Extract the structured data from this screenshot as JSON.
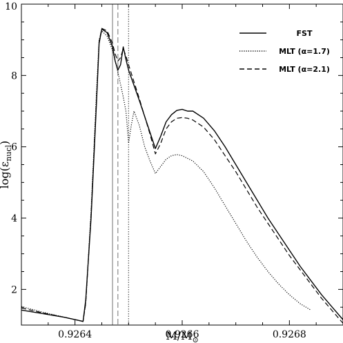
{
  "chart_data": {
    "type": "line",
    "xlabel": "M/M",
    "xlabel_sub": "⊙",
    "ylabel": "log(ε",
    "ylabel_sub": "nucl",
    "ylabel_close": ")",
    "xlim": [
      0.9263,
      0.9269
    ],
    "ylim": [
      1.0,
      10.0
    ],
    "x_ticks": [
      {
        "value": 0.9264,
        "label": "0.9264"
      },
      {
        "value": 0.9266,
        "label": "0.9266"
      },
      {
        "value": 0.9268,
        "label": "0.9268"
      }
    ],
    "y_ticks": [
      {
        "value": 2,
        "label": "2"
      },
      {
        "value": 4,
        "label": "4"
      },
      {
        "value": 6,
        "label": "6"
      },
      {
        "value": 8,
        "label": "8"
      },
      {
        "value": 10,
        "label": "10"
      }
    ],
    "x_minor_step": 5e-05,
    "y_minor_step": 0.5,
    "legend_position": "top-right",
    "series": [
      {
        "name": "FST",
        "style": "solid",
        "color": "#000000",
        "points": [
          [
            0.9263,
            1.42
          ],
          [
            0.92634,
            1.32
          ],
          [
            0.92638,
            1.22
          ],
          [
            0.92641,
            1.12
          ],
          [
            0.926415,
            1.1
          ],
          [
            0.92642,
            1.7
          ],
          [
            0.92643,
            4.0
          ],
          [
            0.92644,
            7.2
          ],
          [
            0.926445,
            8.9
          ],
          [
            0.92645,
            9.3
          ],
          [
            0.92646,
            9.2
          ],
          [
            0.92647,
            8.8
          ],
          [
            0.926475,
            8.4
          ],
          [
            0.92648,
            8.15
          ],
          [
            0.926485,
            8.3
          ],
          [
            0.92649,
            8.8
          ],
          [
            0.926495,
            8.45
          ],
          [
            0.9265,
            8.15
          ],
          [
            0.92652,
            7.3
          ],
          [
            0.92654,
            6.4
          ],
          [
            0.92655,
            5.95
          ],
          [
            0.92656,
            6.3
          ],
          [
            0.92657,
            6.7
          ],
          [
            0.92658,
            6.9
          ],
          [
            0.92659,
            7.02
          ],
          [
            0.9266,
            7.05
          ],
          [
            0.92661,
            7.0
          ],
          [
            0.92662,
            7.0
          ],
          [
            0.92664,
            6.8
          ],
          [
            0.92666,
            6.45
          ],
          [
            0.92668,
            6.0
          ],
          [
            0.9267,
            5.5
          ],
          [
            0.92672,
            5.0
          ],
          [
            0.92674,
            4.5
          ],
          [
            0.92676,
            4.0
          ],
          [
            0.92678,
            3.55
          ],
          [
            0.9268,
            3.1
          ],
          [
            0.92682,
            2.65
          ],
          [
            0.92684,
            2.25
          ],
          [
            0.92686,
            1.85
          ],
          [
            0.92688,
            1.5
          ],
          [
            0.9269,
            1.15
          ]
        ]
      },
      {
        "name": "MLT (α=1.7)",
        "style": "dotted",
        "color": "#000000",
        "points": [
          [
            0.9263,
            1.52
          ],
          [
            0.92634,
            1.36
          ],
          [
            0.92638,
            1.22
          ],
          [
            0.92641,
            1.12
          ],
          [
            0.926415,
            1.1
          ],
          [
            0.92642,
            1.6
          ],
          [
            0.92643,
            4.2
          ],
          [
            0.92644,
            7.5
          ],
          [
            0.926445,
            9.0
          ],
          [
            0.92645,
            9.25
          ],
          [
            0.92646,
            9.1
          ],
          [
            0.92647,
            8.7
          ],
          [
            0.92648,
            8.1
          ],
          [
            0.92649,
            7.4
          ],
          [
            0.926495,
            7.0
          ],
          [
            0.9265,
            6.1
          ],
          [
            0.926505,
            6.6
          ],
          [
            0.92651,
            7.0
          ],
          [
            0.92652,
            6.6
          ],
          [
            0.92653,
            6.0
          ],
          [
            0.92654,
            5.6
          ],
          [
            0.92655,
            5.25
          ],
          [
            0.92656,
            5.45
          ],
          [
            0.92657,
            5.65
          ],
          [
            0.92658,
            5.75
          ],
          [
            0.92659,
            5.78
          ],
          [
            0.9266,
            5.75
          ],
          [
            0.92662,
            5.6
          ],
          [
            0.92664,
            5.3
          ],
          [
            0.92666,
            4.85
          ],
          [
            0.92668,
            4.35
          ],
          [
            0.9267,
            3.85
          ],
          [
            0.92672,
            3.35
          ],
          [
            0.92674,
            2.9
          ],
          [
            0.92676,
            2.5
          ],
          [
            0.92678,
            2.15
          ],
          [
            0.9268,
            1.85
          ],
          [
            0.92682,
            1.6
          ],
          [
            0.92684,
            1.42
          ]
        ]
      },
      {
        "name": "MLT (α=2.1)",
        "style": "dashed",
        "color": "#000000",
        "points": [
          [
            0.9263,
            1.48
          ],
          [
            0.92634,
            1.34
          ],
          [
            0.92638,
            1.22
          ],
          [
            0.92641,
            1.12
          ],
          [
            0.926415,
            1.1
          ],
          [
            0.92642,
            1.6
          ],
          [
            0.92643,
            4.1
          ],
          [
            0.92644,
            7.3
          ],
          [
            0.926445,
            8.95
          ],
          [
            0.92645,
            9.32
          ],
          [
            0.92646,
            9.25
          ],
          [
            0.92647,
            8.9
          ],
          [
            0.926475,
            8.6
          ],
          [
            0.92648,
            8.4
          ],
          [
            0.926485,
            8.5
          ],
          [
            0.92649,
            8.75
          ],
          [
            0.926495,
            8.55
          ],
          [
            0.9265,
            8.3
          ],
          [
            0.92652,
            7.35
          ],
          [
            0.92654,
            6.35
          ],
          [
            0.92655,
            5.8
          ],
          [
            0.92656,
            6.1
          ],
          [
            0.92657,
            6.5
          ],
          [
            0.92658,
            6.7
          ],
          [
            0.92659,
            6.8
          ],
          [
            0.9266,
            6.82
          ],
          [
            0.92661,
            6.8
          ],
          [
            0.92662,
            6.75
          ],
          [
            0.92664,
            6.55
          ],
          [
            0.92666,
            6.2
          ],
          [
            0.92668,
            5.75
          ],
          [
            0.9267,
            5.3
          ],
          [
            0.92672,
            4.8
          ],
          [
            0.92674,
            4.3
          ],
          [
            0.92676,
            3.85
          ],
          [
            0.92678,
            3.4
          ],
          [
            0.9268,
            2.95
          ],
          [
            0.92682,
            2.55
          ],
          [
            0.92684,
            2.15
          ],
          [
            0.92686,
            1.75
          ],
          [
            0.92688,
            1.4
          ],
          [
            0.9269,
            1.05
          ]
        ]
      }
    ],
    "vertical_lines": [
      {
        "x": 0.92647,
        "style": "solid",
        "color": "#888888"
      },
      {
        "x": 0.92648,
        "style": "dashed",
        "color": "#888888"
      },
      {
        "x": 0.9265,
        "style": "dotted",
        "color": "#555555"
      }
    ]
  }
}
